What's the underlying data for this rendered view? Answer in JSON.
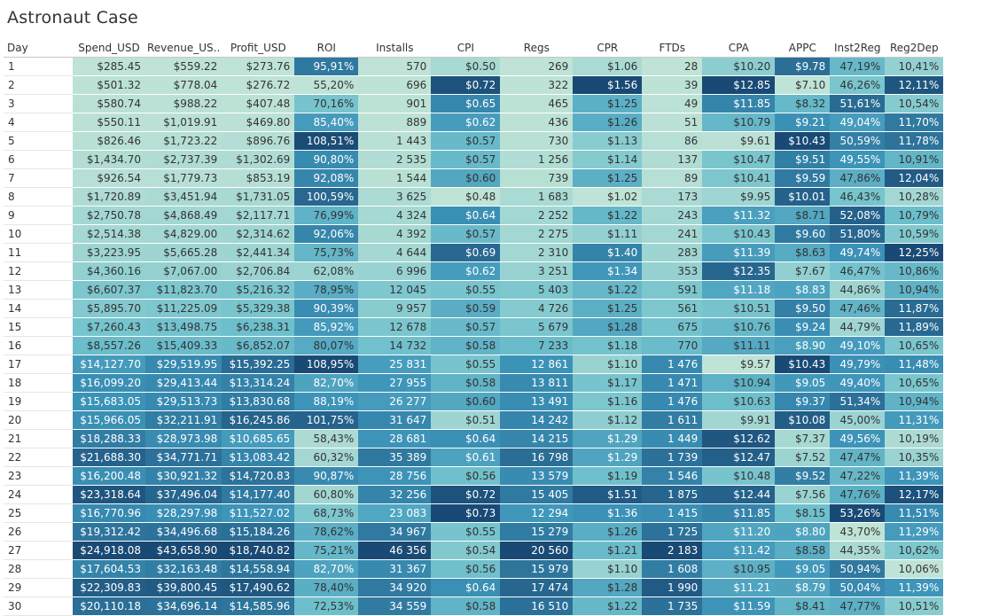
{
  "title": "Astronaut Case",
  "chart_data": {
    "type": "table",
    "title": "Astronaut Case",
    "columns": [
      "Day",
      "Spend_USD",
      "Revenue_US..",
      "Profit_USD",
      "ROI",
      "Installs",
      "CPI",
      "Regs",
      "CPR",
      "FTDs",
      "CPA",
      "APPC",
      "Inst2Reg",
      "Reg2Dep"
    ],
    "rows": [
      [
        "1",
        "$285.45",
        "$559.22",
        "$273.76",
        "95,91%",
        "570",
        "$0.50",
        "269",
        "$1.06",
        "28",
        "$10.20",
        "$9.78",
        "47,19%",
        "10,41%"
      ],
      [
        "2",
        "$501.32",
        "$778.04",
        "$276.72",
        "55,20%",
        "696",
        "$0.72",
        "322",
        "$1.56",
        "39",
        "$12.85",
        "$7.10",
        "46,26%",
        "12,11%"
      ],
      [
        "3",
        "$580.74",
        "$988.22",
        "$407.48",
        "70,16%",
        "901",
        "$0.65",
        "465",
        "$1.25",
        "49",
        "$11.85",
        "$8.32",
        "51,61%",
        "10,54%"
      ],
      [
        "4",
        "$550.11",
        "$1,019.91",
        "$469.80",
        "85,40%",
        "889",
        "$0.62",
        "436",
        "$1.26",
        "51",
        "$10.79",
        "$9.21",
        "49,04%",
        "11,70%"
      ],
      [
        "5",
        "$826.46",
        "$1,723.22",
        "$896.76",
        "108,51%",
        "1 443",
        "$0.57",
        "730",
        "$1.13",
        "86",
        "$9.61",
        "$10.43",
        "50,59%",
        "11,78%"
      ],
      [
        "6",
        "$1,434.70",
        "$2,737.39",
        "$1,302.69",
        "90,80%",
        "2 535",
        "$0.57",
        "1 256",
        "$1.14",
        "137",
        "$10.47",
        "$9.51",
        "49,55%",
        "10,91%"
      ],
      [
        "7",
        "$926.54",
        "$1,779.73",
        "$853.19",
        "92,08%",
        "1 544",
        "$0.60",
        "739",
        "$1.25",
        "89",
        "$10.41",
        "$9.59",
        "47,86%",
        "12,04%"
      ],
      [
        "8",
        "$1,720.89",
        "$3,451.94",
        "$1,731.05",
        "100,59%",
        "3 625",
        "$0.48",
        "1 683",
        "$1.02",
        "173",
        "$9.95",
        "$10.01",
        "46,43%",
        "10,28%"
      ],
      [
        "9",
        "$2,750.78",
        "$4,868.49",
        "$2,117.71",
        "76,99%",
        "4 324",
        "$0.64",
        "2 252",
        "$1.22",
        "243",
        "$11.32",
        "$8.71",
        "52,08%",
        "10,79%"
      ],
      [
        "10",
        "$2,514.38",
        "$4,829.00",
        "$2,314.62",
        "92,06%",
        "4 392",
        "$0.57",
        "2 275",
        "$1.11",
        "241",
        "$10.43",
        "$9.60",
        "51,80%",
        "10,59%"
      ],
      [
        "11",
        "$3,223.95",
        "$5,665.28",
        "$2,441.34",
        "75,73%",
        "4 644",
        "$0.69",
        "2 310",
        "$1.40",
        "283",
        "$11.39",
        "$8.63",
        "49,74%",
        "12,25%"
      ],
      [
        "12",
        "$4,360.16",
        "$7,067.00",
        "$2,706.84",
        "62,08%",
        "6 996",
        "$0.62",
        "3 251",
        "$1.34",
        "353",
        "$12.35",
        "$7.67",
        "46,47%",
        "10,86%"
      ],
      [
        "13",
        "$6,607.37",
        "$11,823.70",
        "$5,216.32",
        "78,95%",
        "12 045",
        "$0.55",
        "5 403",
        "$1.22",
        "591",
        "$11.18",
        "$8.83",
        "44,86%",
        "10,94%"
      ],
      [
        "14",
        "$5,895.70",
        "$11,225.09",
        "$5,329.38",
        "90,39%",
        "9 957",
        "$0.59",
        "4 726",
        "$1.25",
        "561",
        "$10.51",
        "$9.50",
        "47,46%",
        "11,87%"
      ],
      [
        "15",
        "$7,260.43",
        "$13,498.75",
        "$6,238.31",
        "85,92%",
        "12 678",
        "$0.57",
        "5 679",
        "$1.28",
        "675",
        "$10.76",
        "$9.24",
        "44,79%",
        "11,89%"
      ],
      [
        "16",
        "$8,557.26",
        "$15,409.33",
        "$6,852.07",
        "80,07%",
        "14 732",
        "$0.58",
        "7 233",
        "$1.18",
        "770",
        "$11.11",
        "$8.90",
        "49,10%",
        "10,65%"
      ],
      [
        "17",
        "$14,127.70",
        "$29,519.95",
        "$15,392.25",
        "108,95%",
        "25 831",
        "$0.55",
        "12 861",
        "$1.10",
        "1 476",
        "$9.57",
        "$10.43",
        "49,79%",
        "11,48%"
      ],
      [
        "18",
        "$16,099.20",
        "$29,413.44",
        "$13,314.24",
        "82,70%",
        "27 955",
        "$0.58",
        "13 811",
        "$1.17",
        "1 471",
        "$10.94",
        "$9.05",
        "49,40%",
        "10,65%"
      ],
      [
        "19",
        "$15,683.05",
        "$29,513.73",
        "$13,830.68",
        "88,19%",
        "26 277",
        "$0.60",
        "13 491",
        "$1.16",
        "1 476",
        "$10.63",
        "$9.37",
        "51,34%",
        "10,94%"
      ],
      [
        "20",
        "$15,966.05",
        "$32,211.91",
        "$16,245.86",
        "101,75%",
        "31 647",
        "$0.51",
        "14 242",
        "$1.12",
        "1 611",
        "$9.91",
        "$10.08",
        "45,00%",
        "11,31%"
      ],
      [
        "21",
        "$18,288.33",
        "$28,973.98",
        "$10,685.65",
        "58,43%",
        "28 681",
        "$0.64",
        "14 215",
        "$1.29",
        "1 449",
        "$12.62",
        "$7.37",
        "49,56%",
        "10,19%"
      ],
      [
        "22",
        "$21,688.30",
        "$34,771.71",
        "$13,083.42",
        "60,32%",
        "35 389",
        "$0.61",
        "16 798",
        "$1.29",
        "1 739",
        "$12.47",
        "$7.52",
        "47,47%",
        "10,35%"
      ],
      [
        "23",
        "$16,200.48",
        "$30,921.32",
        "$14,720.83",
        "90,87%",
        "28 756",
        "$0.56",
        "13 579",
        "$1.19",
        "1 546",
        "$10.48",
        "$9.52",
        "47,22%",
        "11,39%"
      ],
      [
        "24",
        "$23,318.64",
        "$37,496.04",
        "$14,177.40",
        "60,80%",
        "32 256",
        "$0.72",
        "15 405",
        "$1.51",
        "1 875",
        "$12.44",
        "$7.56",
        "47,76%",
        "12,17%"
      ],
      [
        "25",
        "$16,770.96",
        "$28,297.98",
        "$11,527.02",
        "68,73%",
        "23 083",
        "$0.73",
        "12 294",
        "$1.36",
        "1 415",
        "$11.85",
        "$8.15",
        "53,26%",
        "11,51%"
      ],
      [
        "26",
        "$19,312.42",
        "$34,496.68",
        "$15,184.26",
        "78,62%",
        "34 967",
        "$0.55",
        "15 279",
        "$1.26",
        "1 725",
        "$11.20",
        "$8.80",
        "43,70%",
        "11,29%"
      ],
      [
        "27",
        "$24,918.08",
        "$43,658.90",
        "$18,740.82",
        "75,21%",
        "46 356",
        "$0.54",
        "20 560",
        "$1.21",
        "2 183",
        "$11.42",
        "$8.58",
        "44,35%",
        "10,62%"
      ],
      [
        "28",
        "$17,604.53",
        "$32,163.48",
        "$14,558.94",
        "82,70%",
        "31 367",
        "$0.56",
        "15 979",
        "$1.10",
        "1 608",
        "$10.95",
        "$9.05",
        "50,94%",
        "10,06%"
      ],
      [
        "29",
        "$22,309.83",
        "$39,800.45",
        "$17,490.62",
        "78,40%",
        "34 920",
        "$0.64",
        "17 474",
        "$1.28",
        "1 990",
        "$11.21",
        "$8.79",
        "50,04%",
        "11,39%"
      ],
      [
        "30",
        "$20,110.18",
        "$34,696.14",
        "$14,585.96",
        "72,53%",
        "34 559",
        "$0.58",
        "16 510",
        "$1.22",
        "1 735",
        "$11.59",
        "$8.41",
        "47,77%",
        "10,51%"
      ]
    ]
  }
}
